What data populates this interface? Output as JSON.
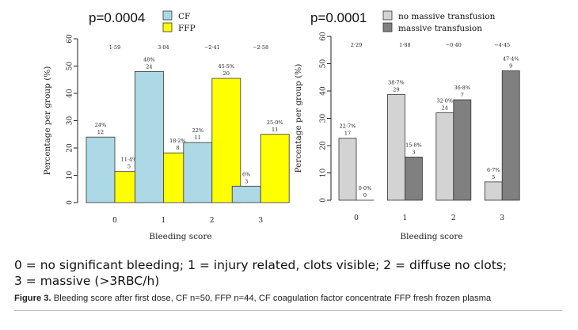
{
  "chart_data": [
    {
      "type": "bar",
      "title": "p=0.0004",
      "xlabel": "Bleeding score",
      "ylabel": "Percentage per group (%)",
      "ylim": [
        0,
        60
      ],
      "yticks": [
        "0",
        "10",
        "20",
        "30",
        "40",
        "50",
        "60"
      ],
      "categories": [
        "0",
        "1",
        "2",
        "3"
      ],
      "top_annotations": [
        "1·59",
        "3·04",
        "−2·41",
        "−2·58"
      ],
      "legend_position": "top-left",
      "grid": false,
      "series": [
        {
          "name": "CF",
          "color": "#add8e6",
          "values": [
            24,
            48,
            22,
            6
          ],
          "labels": [
            [
              "24%",
              "12"
            ],
            [
              "48%",
              "24"
            ],
            [
              "22%",
              "11"
            ],
            [
              "6%",
              "3"
            ]
          ]
        },
        {
          "name": "FFP",
          "color": "#ffff00",
          "values": [
            11.4,
            18.2,
            45.5,
            25.0
          ],
          "labels": [
            [
              "11·4%",
              "5"
            ],
            [
              "18·2%",
              "8"
            ],
            [
              "45·5%",
              "20"
            ],
            [
              "25·0%",
              "11"
            ]
          ]
        }
      ]
    },
    {
      "type": "bar",
      "title": "p=0.0001",
      "xlabel": "Bleeding score",
      "ylabel": "Percentage per group (%)",
      "ylim": [
        0,
        60
      ],
      "yticks": [
        "0",
        "10",
        "20",
        "30",
        "40",
        "50",
        "60"
      ],
      "categories": [
        "0",
        "1",
        "2",
        "3"
      ],
      "top_annotations": [
        "2·29",
        "1·88",
        "−0·40",
        "−4·45"
      ],
      "legend_position": "top-right",
      "grid": false,
      "series": [
        {
          "name": "no massive transfusion",
          "color": "#d3d3d3",
          "values": [
            22.7,
            38.7,
            32.0,
            6.7
          ],
          "labels": [
            [
              "22·7%",
              "17"
            ],
            [
              "38·7%",
              "29"
            ],
            [
              "32·0%",
              "24"
            ],
            [
              "6·7%",
              "5"
            ]
          ]
        },
        {
          "name": "massive transfusion",
          "color": "#808080",
          "values": [
            0.0,
            15.8,
            36.8,
            47.4
          ],
          "labels": [
            [
              "0·0%",
              "0"
            ],
            [
              "15·8%",
              "3"
            ],
            [
              "36·8%",
              "7"
            ],
            [
              "47·4%",
              "9"
            ]
          ]
        }
      ]
    }
  ],
  "legend_text": {
    "line1": "0 = no significant bleeding; 1 = injury related, clots visible; 2 = diffuse no clots;",
    "line2": "3 = massive (>3RBC/h)"
  },
  "caption": {
    "label": "Figure 3.",
    "text": " Bleeding score after first dose, CF n=50, FFP n=44, CF coagulation  factor concentrate FFP fresh frozen plasma"
  }
}
